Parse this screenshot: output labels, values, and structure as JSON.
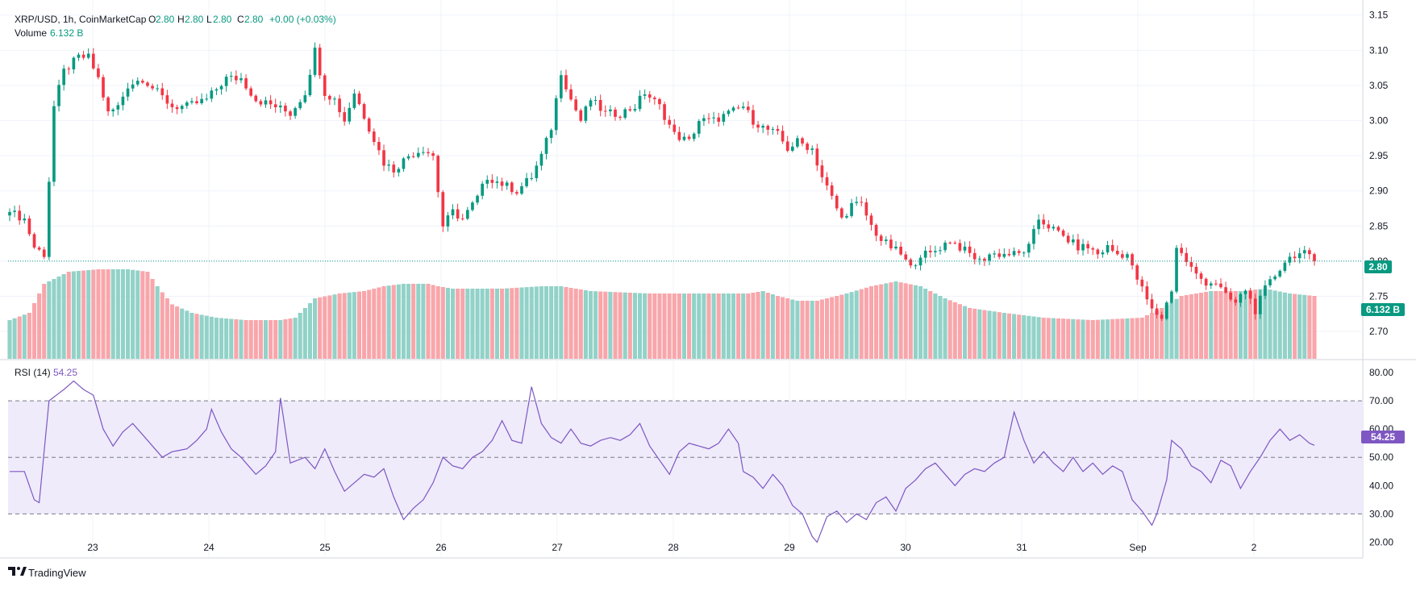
{
  "header": {
    "symbol": "XRP/USD, 1h, CoinMarketCap",
    "o_key": "O",
    "o_val": "2.80",
    "h_key": "H",
    "h_val": "2.80",
    "l_key": "L",
    "l_val": "2.80",
    "c_key": "C",
    "c_val": "2.80",
    "change": "+0.00 (+0.03%)",
    "volume_label": "Volume",
    "volume_val": "6.132 B"
  },
  "rsi": {
    "label": "RSI (14)",
    "value": "54.25"
  },
  "badges": {
    "price": "2.80",
    "volume": "6.132 B",
    "rsi": "54.25"
  },
  "branding": {
    "name": "TradingView"
  },
  "colors": {
    "up": "#089981",
    "down": "#f23645",
    "vol_up": "#92d2c8",
    "vol_down": "#f8a6ab",
    "rsi_line": "#7e57c2",
    "rsi_band": "#efebfb"
  },
  "chart_data": [
    {
      "type": "candlestick",
      "title": "XRP/USD, 1h, CoinMarketCap",
      "ylim": [
        2.66,
        3.16
      ],
      "y_ticks": [
        "2.70",
        "2.75",
        "2.80",
        "2.85",
        "2.90",
        "2.95",
        "3.00",
        "3.05",
        "3.10",
        "3.15"
      ],
      "x_ticks": [
        "23",
        "24",
        "25",
        "26",
        "27",
        "28",
        "29",
        "30",
        "31",
        "Sep",
        "2"
      ],
      "last_price": 2.8,
      "close_anchors": [
        [
          0,
          2.87
        ],
        [
          3,
          2.86
        ],
        [
          5,
          2.82
        ],
        [
          7,
          2.81
        ],
        [
          9,
          3.02
        ],
        [
          11,
          3.07
        ],
        [
          14,
          3.09
        ],
        [
          16,
          3.09
        ],
        [
          18,
          3.06
        ],
        [
          20,
          3.01
        ],
        [
          22,
          3.02
        ],
        [
          24,
          3.05
        ],
        [
          27,
          3.06
        ],
        [
          30,
          3.04
        ],
        [
          33,
          3.02
        ],
        [
          36,
          3.02
        ],
        [
          40,
          3.03
        ],
        [
          44,
          3.06
        ],
        [
          47,
          3.06
        ],
        [
          50,
          3.03
        ],
        [
          54,
          3.02
        ],
        [
          57,
          3.01
        ],
        [
          60,
          3.04
        ],
        [
          62,
          3.1
        ],
        [
          64,
          3.04
        ],
        [
          66,
          3.03
        ],
        [
          68,
          3.0
        ],
        [
          70,
          3.04
        ],
        [
          73,
          2.99
        ],
        [
          76,
          2.94
        ],
        [
          78,
          2.93
        ],
        [
          81,
          2.95
        ],
        [
          84,
          2.96
        ],
        [
          86,
          2.95
        ],
        [
          87,
          2.9
        ],
        [
          88,
          2.85
        ],
        [
          90,
          2.87
        ],
        [
          92,
          2.86
        ],
        [
          95,
          2.89
        ],
        [
          97,
          2.92
        ],
        [
          100,
          2.91
        ],
        [
          103,
          2.9
        ],
        [
          106,
          2.92
        ],
        [
          108,
          2.95
        ],
        [
          110,
          2.99
        ],
        [
          112,
          3.07
        ],
        [
          114,
          3.03
        ],
        [
          116,
          3.0
        ],
        [
          118,
          3.03
        ],
        [
          121,
          3.01
        ],
        [
          124,
          3.01
        ],
        [
          127,
          3.02
        ],
        [
          129,
          3.04
        ],
        [
          132,
          3.02
        ],
        [
          135,
          2.98
        ],
        [
          138,
          2.97
        ],
        [
          140,
          3.0
        ],
        [
          143,
          3.0
        ],
        [
          146,
          3.01
        ],
        [
          149,
          3.02
        ],
        [
          151,
          3.0
        ],
        [
          153,
          2.99
        ],
        [
          156,
          2.98
        ],
        [
          158,
          2.96
        ],
        [
          160,
          2.97
        ],
        [
          163,
          2.96
        ],
        [
          165,
          2.92
        ],
        [
          167,
          2.89
        ],
        [
          169,
          2.86
        ],
        [
          171,
          2.88
        ],
        [
          173,
          2.88
        ],
        [
          175,
          2.85
        ],
        [
          177,
          2.83
        ],
        [
          179,
          2.82
        ],
        [
          181,
          2.81
        ],
        [
          183,
          2.79
        ],
        [
          185,
          2.81
        ],
        [
          187,
          2.81
        ],
        [
          189,
          2.82
        ],
        [
          191,
          2.83
        ],
        [
          193,
          2.82
        ],
        [
          195,
          2.81
        ],
        [
          197,
          2.8
        ],
        [
          199,
          2.81
        ],
        [
          201,
          2.81
        ],
        [
          203,
          2.81
        ],
        [
          205,
          2.81
        ],
        [
          207,
          2.82
        ],
        [
          209,
          2.86
        ],
        [
          211,
          2.85
        ],
        [
          213,
          2.84
        ],
        [
          215,
          2.83
        ],
        [
          217,
          2.82
        ],
        [
          219,
          2.82
        ],
        [
          221,
          2.81
        ],
        [
          223,
          2.82
        ],
        [
          225,
          2.81
        ],
        [
          227,
          2.81
        ],
        [
          228,
          2.79
        ],
        [
          230,
          2.76
        ],
        [
          232,
          2.73
        ],
        [
          234,
          2.72
        ],
        [
          235,
          2.74
        ],
        [
          236,
          2.76
        ],
        [
          237,
          2.82
        ],
        [
          239,
          2.8
        ],
        [
          241,
          2.78
        ],
        [
          243,
          2.77
        ],
        [
          245,
          2.77
        ],
        [
          247,
          2.75
        ],
        [
          249,
          2.74
        ],
        [
          251,
          2.76
        ],
        [
          253,
          2.73
        ],
        [
          255,
          2.76
        ],
        [
          257,
          2.78
        ],
        [
          259,
          2.8
        ],
        [
          261,
          2.81
        ],
        [
          263,
          2.81
        ],
        [
          265,
          2.8
        ]
      ]
    },
    {
      "type": "bar",
      "title": "Volume",
      "last_value": "6.132 B",
      "relative_height_anchors": [
        [
          0,
          0.32
        ],
        [
          4,
          0.38
        ],
        [
          7,
          0.62
        ],
        [
          12,
          0.72
        ],
        [
          18,
          0.74
        ],
        [
          24,
          0.74
        ],
        [
          28,
          0.72
        ],
        [
          30,
          0.6
        ],
        [
          33,
          0.45
        ],
        [
          37,
          0.38
        ],
        [
          42,
          0.34
        ],
        [
          48,
          0.32
        ],
        [
          55,
          0.32
        ],
        [
          58,
          0.34
        ],
        [
          62,
          0.5
        ],
        [
          67,
          0.54
        ],
        [
          72,
          0.56
        ],
        [
          76,
          0.6
        ],
        [
          80,
          0.62
        ],
        [
          85,
          0.62
        ],
        [
          87,
          0.6
        ],
        [
          90,
          0.58
        ],
        [
          100,
          0.58
        ],
        [
          108,
          0.6
        ],
        [
          112,
          0.6
        ],
        [
          118,
          0.56
        ],
        [
          130,
          0.54
        ],
        [
          140,
          0.54
        ],
        [
          150,
          0.54
        ],
        [
          153,
          0.56
        ],
        [
          156,
          0.52
        ],
        [
          160,
          0.48
        ],
        [
          164,
          0.48
        ],
        [
          170,
          0.54
        ],
        [
          175,
          0.6
        ],
        [
          180,
          0.64
        ],
        [
          185,
          0.6
        ],
        [
          190,
          0.5
        ],
        [
          195,
          0.42
        ],
        [
          202,
          0.38
        ],
        [
          210,
          0.34
        ],
        [
          220,
          0.32
        ],
        [
          230,
          0.34
        ],
        [
          234,
          0.42
        ],
        [
          238,
          0.52
        ],
        [
          244,
          0.56
        ],
        [
          250,
          0.56
        ],
        [
          255,
          0.58
        ],
        [
          260,
          0.54
        ],
        [
          265,
          0.52
        ]
      ]
    },
    {
      "type": "line",
      "title": "RSI (14)",
      "ylim": [
        15,
        84
      ],
      "y_ticks": [
        "20.00",
        "30.00",
        "40.00",
        "50.00",
        "60.00",
        "70.00",
        "80.00"
      ],
      "band": [
        30,
        70
      ],
      "midline": 50,
      "last_value": 54.25,
      "anchors": [
        [
          0,
          45
        ],
        [
          3,
          45
        ],
        [
          5,
          35
        ],
        [
          6,
          34
        ],
        [
          8,
          70
        ],
        [
          11,
          74
        ],
        [
          13,
          77
        ],
        [
          15,
          74
        ],
        [
          17,
          72
        ],
        [
          19,
          60
        ],
        [
          21,
          54
        ],
        [
          23,
          59
        ],
        [
          25,
          62
        ],
        [
          27,
          58
        ],
        [
          29,
          54
        ],
        [
          31,
          50
        ],
        [
          33,
          52
        ],
        [
          36,
          53
        ],
        [
          38,
          56
        ],
        [
          40,
          60
        ],
        [
          41,
          67
        ],
        [
          43,
          59
        ],
        [
          45,
          53
        ],
        [
          47,
          50
        ],
        [
          50,
          44
        ],
        [
          52,
          47
        ],
        [
          54,
          52
        ],
        [
          55,
          71
        ],
        [
          57,
          48
        ],
        [
          60,
          50
        ],
        [
          62,
          46
        ],
        [
          64,
          53
        ],
        [
          66,
          45
        ],
        [
          68,
          38
        ],
        [
          70,
          41
        ],
        [
          72,
          44
        ],
        [
          74,
          43
        ],
        [
          76,
          46
        ],
        [
          78,
          36
        ],
        [
          80,
          28
        ],
        [
          82,
          32
        ],
        [
          84,
          35
        ],
        [
          86,
          41
        ],
        [
          88,
          50
        ],
        [
          90,
          47
        ],
        [
          92,
          46
        ],
        [
          94,
          50
        ],
        [
          96,
          52
        ],
        [
          98,
          56
        ],
        [
          100,
          63
        ],
        [
          102,
          56
        ],
        [
          104,
          55
        ],
        [
          106,
          75
        ],
        [
          108,
          62
        ],
        [
          110,
          57
        ],
        [
          112,
          55
        ],
        [
          114,
          60
        ],
        [
          116,
          55
        ],
        [
          118,
          54
        ],
        [
          120,
          56
        ],
        [
          122,
          57
        ],
        [
          124,
          56
        ],
        [
          126,
          58
        ],
        [
          128,
          62
        ],
        [
          130,
          54
        ],
        [
          132,
          49
        ],
        [
          134,
          44
        ],
        [
          136,
          52
        ],
        [
          138,
          55
        ],
        [
          140,
          54
        ],
        [
          142,
          53
        ],
        [
          144,
          55
        ],
        [
          146,
          60
        ],
        [
          148,
          55
        ],
        [
          149,
          45
        ],
        [
          151,
          43
        ],
        [
          153,
          39
        ],
        [
          155,
          44
        ],
        [
          157,
          40
        ],
        [
          159,
          33
        ],
        [
          161,
          30
        ],
        [
          163,
          22
        ],
        [
          164,
          20
        ],
        [
          166,
          29
        ],
        [
          168,
          31
        ],
        [
          170,
          27
        ],
        [
          172,
          30
        ],
        [
          174,
          28
        ],
        [
          176,
          34
        ],
        [
          178,
          36
        ],
        [
          180,
          31
        ],
        [
          182,
          39
        ],
        [
          184,
          42
        ],
        [
          186,
          46
        ],
        [
          188,
          48
        ],
        [
          190,
          44
        ],
        [
          192,
          40
        ],
        [
          194,
          44
        ],
        [
          196,
          46
        ],
        [
          198,
          45
        ],
        [
          200,
          48
        ],
        [
          202,
          50
        ],
        [
          204,
          66
        ],
        [
          206,
          56
        ],
        [
          208,
          48
        ],
        [
          210,
          52
        ],
        [
          212,
          48
        ],
        [
          214,
          45
        ],
        [
          216,
          50
        ],
        [
          218,
          45
        ],
        [
          220,
          48
        ],
        [
          222,
          44
        ],
        [
          224,
          47
        ],
        [
          226,
          45
        ],
        [
          228,
          35
        ],
        [
          230,
          31
        ],
        [
          232,
          26
        ],
        [
          233,
          30
        ],
        [
          235,
          42
        ],
        [
          236,
          56
        ],
        [
          238,
          53
        ],
        [
          240,
          47
        ],
        [
          242,
          45
        ],
        [
          244,
          41
        ],
        [
          246,
          49
        ],
        [
          248,
          47
        ],
        [
          250,
          39
        ],
        [
          252,
          45
        ],
        [
          254,
          50
        ],
        [
          256,
          56
        ],
        [
          258,
          60
        ],
        [
          260,
          56
        ],
        [
          262,
          58
        ],
        [
          264,
          55
        ],
        [
          265,
          54.25
        ]
      ]
    }
  ]
}
